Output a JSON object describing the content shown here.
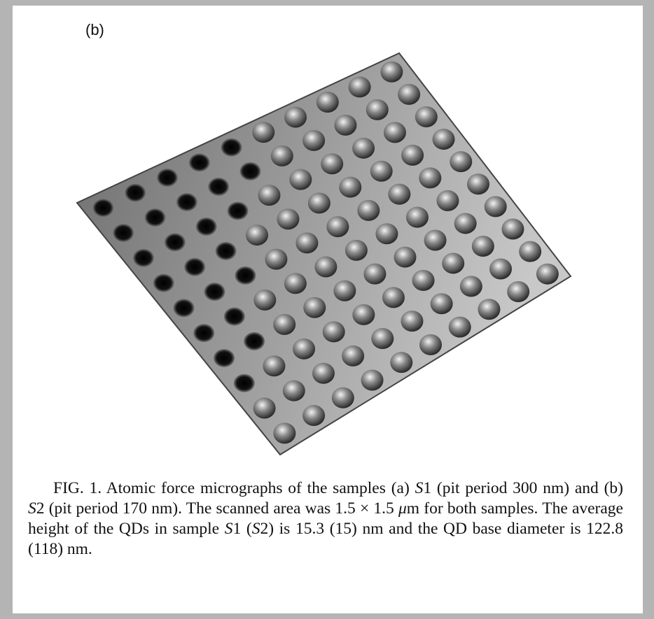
{
  "figure": {
    "panel_label": "(b)"
  },
  "caption": {
    "parts": [
      "FIG. 1. Atomic force micrographs of the samples (a) ",
      "S",
      "1 (pit period 300 nm) and (b) ",
      "S",
      "2 (pit period 170 nm). The scanned area was 1.5 × 1.5 ",
      "μ",
      "m for both samples. The average height of the QDs in sample ",
      "S",
      "1 (",
      "S",
      "2) is 15.3 (15) nm and the QD base diameter is 122.8 (118) nm."
    ]
  }
}
